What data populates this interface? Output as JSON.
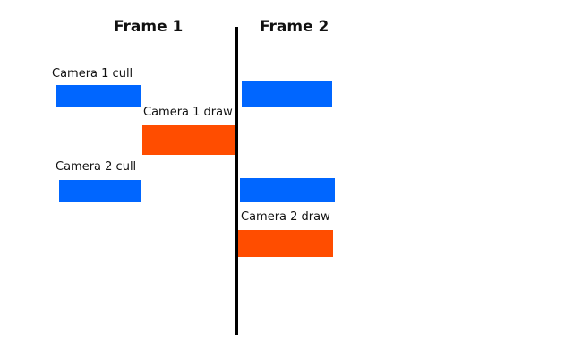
{
  "frames": {
    "frame1_title": "Frame 1",
    "frame2_title": "Frame 2"
  },
  "labels": {
    "camera1_cull": "Camera 1 cull",
    "camera1_draw": "Camera 1 draw",
    "camera2_cull": "Camera 2 cull",
    "camera2_draw": "Camera 2 draw"
  },
  "colors": {
    "cull": "#0066ff",
    "draw": "#ff4d00",
    "divider": "#000000"
  }
}
